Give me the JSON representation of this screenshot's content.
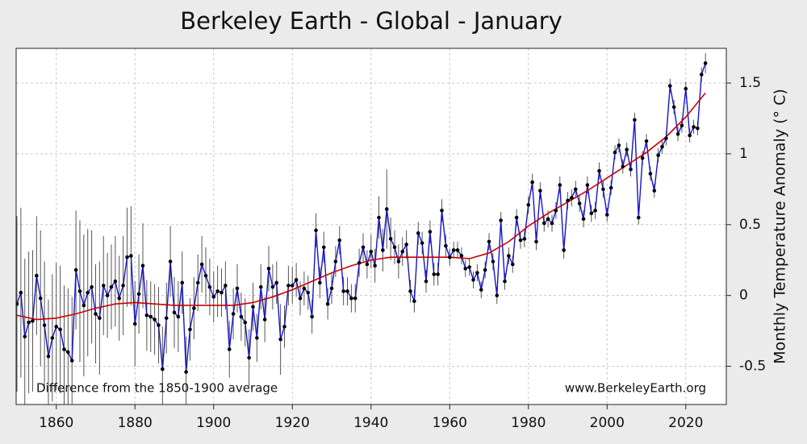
{
  "chart_data": {
    "type": "line",
    "title": "Berkeley Earth - Global - January",
    "y_label": "Monthly Temperature Anomaly (° C)",
    "annotations": [
      "Difference from the 1850-1900 average",
      "www.BerkeleyEarth.org"
    ],
    "grid": true,
    "xlim": [
      1849.8,
      2030.3
    ],
    "ylim": [
      -0.77,
      1.745
    ],
    "xticks": [
      1860,
      1880,
      1900,
      1920,
      1940,
      1960,
      1980,
      2000,
      2020
    ],
    "yticks": [
      -0.5,
      0,
      0.5,
      1,
      1.5
    ],
    "x": [
      1850,
      1851,
      1852,
      1853,
      1854,
      1855,
      1856,
      1857,
      1858,
      1859,
      1860,
      1861,
      1862,
      1863,
      1864,
      1865,
      1866,
      1867,
      1868,
      1869,
      1870,
      1871,
      1872,
      1873,
      1874,
      1875,
      1876,
      1877,
      1878,
      1879,
      1880,
      1881,
      1882,
      1883,
      1884,
      1885,
      1886,
      1887,
      1888,
      1889,
      1890,
      1891,
      1892,
      1893,
      1894,
      1895,
      1896,
      1897,
      1898,
      1899,
      1900,
      1901,
      1902,
      1903,
      1904,
      1905,
      1906,
      1907,
      1908,
      1909,
      1910,
      1911,
      1912,
      1913,
      1914,
      1915,
      1916,
      1917,
      1918,
      1919,
      1920,
      1921,
      1922,
      1923,
      1924,
      1925,
      1926,
      1927,
      1928,
      1929,
      1930,
      1931,
      1932,
      1933,
      1934,
      1935,
      1936,
      1937,
      1938,
      1939,
      1940,
      1941,
      1942,
      1943,
      1944,
      1945,
      1946,
      1947,
      1948,
      1949,
      1950,
      1951,
      1952,
      1953,
      1954,
      1955,
      1956,
      1957,
      1958,
      1959,
      1960,
      1961,
      1962,
      1963,
      1964,
      1965,
      1966,
      1967,
      1968,
      1969,
      1970,
      1971,
      1972,
      1973,
      1974,
      1975,
      1976,
      1977,
      1978,
      1979,
      1980,
      1981,
      1982,
      1983,
      1984,
      1985,
      1986,
      1987,
      1988,
      1989,
      1990,
      1991,
      1992,
      1993,
      1994,
      1995,
      1996,
      1997,
      1998,
      1999,
      2000,
      2001,
      2002,
      2003,
      2004,
      2005,
      2006,
      2007,
      2008,
      2009,
      2010,
      2011,
      2012,
      2013,
      2014,
      2015,
      2016,
      2017,
      2018,
      2019,
      2020,
      2021,
      2022,
      2023,
      2024,
      2025
    ],
    "series": [
      {
        "color": "#1414c8",
        "values": [
          -0.06,
          0.02,
          -0.29,
          -0.19,
          -0.18,
          0.14,
          -0.02,
          -0.21,
          -0.43,
          -0.3,
          -0.22,
          -0.24,
          -0.38,
          -0.4,
          -0.46,
          0.18,
          0.03,
          -0.07,
          0.02,
          0.06,
          -0.13,
          -0.16,
          0.07,
          0.0,
          0.06,
          0.1,
          -0.02,
          0.07,
          0.27,
          0.28,
          -0.2,
          0.01,
          0.21,
          -0.14,
          -0.15,
          -0.17,
          -0.21,
          -0.52,
          -0.16,
          0.24,
          -0.12,
          -0.15,
          0.09,
          -0.54,
          -0.24,
          -0.09,
          0.09,
          0.22,
          0.14,
          0.06,
          -0.01,
          0.03,
          0.02,
          0.07,
          -0.38,
          -0.13,
          0.05,
          -0.15,
          -0.19,
          -0.44,
          -0.08,
          -0.3,
          0.06,
          -0.17,
          0.19,
          0.06,
          0.09,
          -0.31,
          -0.22,
          0.07,
          0.07,
          0.11,
          -0.02,
          0.05,
          0.02,
          -0.15,
          0.46,
          0.09,
          0.34,
          -0.06,
          0.05,
          0.24,
          0.39,
          0.03,
          0.03,
          -0.02,
          -0.02,
          0.23,
          0.34,
          0.22,
          0.31,
          0.21,
          0.55,
          0.32,
          0.61,
          0.4,
          0.34,
          0.24,
          0.31,
          0.36,
          0.03,
          -0.04,
          0.44,
          0.37,
          0.1,
          0.45,
          0.15,
          0.15,
          0.6,
          0.35,
          0.27,
          0.32,
          0.32,
          0.28,
          0.19,
          0.2,
          0.11,
          0.16,
          0.04,
          0.18,
          0.38,
          0.24,
          0.0,
          0.53,
          0.1,
          0.28,
          0.22,
          0.55,
          0.39,
          0.4,
          0.64,
          0.8,
          0.38,
          0.74,
          0.51,
          0.54,
          0.51,
          0.6,
          0.78,
          0.32,
          0.67,
          0.69,
          0.75,
          0.65,
          0.54,
          0.78,
          0.58,
          0.6,
          0.88,
          0.75,
          0.57,
          0.76,
          1.01,
          1.06,
          0.91,
          1.03,
          0.89,
          1.24,
          0.55,
          0.97,
          1.09,
          0.86,
          0.74,
          0.99,
          1.05,
          1.11,
          1.48,
          1.33,
          1.14,
          1.2,
          1.46,
          1.13,
          1.19,
          1.18,
          1.56,
          1.64
        ],
        "errors": [
          0.62,
          0.6,
          0.55,
          0.5,
          0.5,
          0.42,
          0.48,
          0.45,
          0.4,
          0.45,
          0.45,
          0.45,
          0.45,
          0.45,
          0.45,
          0.42,
          0.5,
          0.5,
          0.45,
          0.4,
          0.35,
          0.4,
          0.35,
          0.3,
          0.3,
          0.32,
          0.3,
          0.35,
          0.35,
          0.35,
          0.3,
          0.28,
          0.3,
          0.25,
          0.25,
          0.25,
          0.27,
          0.3,
          0.25,
          0.25,
          0.25,
          0.25,
          0.22,
          0.25,
          0.22,
          0.22,
          0.2,
          0.2,
          0.2,
          0.2,
          0.18,
          0.18,
          0.17,
          0.17,
          0.2,
          0.18,
          0.17,
          0.17,
          0.17,
          0.2,
          0.17,
          0.17,
          0.16,
          0.16,
          0.16,
          0.16,
          0.15,
          0.25,
          0.15,
          0.14,
          0.13,
          0.12,
          0.12,
          0.12,
          0.12,
          0.12,
          0.12,
          0.11,
          0.11,
          0.11,
          0.11,
          0.11,
          0.1,
          0.1,
          0.1,
          0.1,
          0.1,
          0.1,
          0.1,
          0.1,
          0.12,
          0.12,
          0.15,
          0.15,
          0.28,
          0.15,
          0.12,
          0.12,
          0.1,
          0.1,
          0.08,
          0.08,
          0.08,
          0.08,
          0.08,
          0.08,
          0.08,
          0.08,
          0.08,
          0.08,
          0.06,
          0.06,
          0.06,
          0.06,
          0.06,
          0.06,
          0.06,
          0.06,
          0.06,
          0.06,
          0.06,
          0.06,
          0.06,
          0.06,
          0.06,
          0.06,
          0.06,
          0.06,
          0.06,
          0.06,
          0.06,
          0.06,
          0.06,
          0.06,
          0.06,
          0.06,
          0.06,
          0.06,
          0.06,
          0.06,
          0.06,
          0.06,
          0.06,
          0.06,
          0.06,
          0.06,
          0.06,
          0.06,
          0.06,
          0.06,
          0.05,
          0.05,
          0.05,
          0.05,
          0.05,
          0.05,
          0.05,
          0.05,
          0.05,
          0.05,
          0.05,
          0.05,
          0.05,
          0.05,
          0.05,
          0.05,
          0.05,
          0.05,
          0.05,
          0.05,
          0.05,
          0.05,
          0.05,
          0.05,
          0.05,
          0.07
        ]
      }
    ],
    "trend": {
      "color": "#cc0000",
      "x": [
        1850,
        1855,
        1860,
        1865,
        1870,
        1875,
        1880,
        1885,
        1890,
        1895,
        1900,
        1905,
        1910,
        1915,
        1920,
        1925,
        1930,
        1935,
        1940,
        1945,
        1950,
        1955,
        1960,
        1965,
        1970,
        1975,
        1980,
        1985,
        1990,
        1995,
        2000,
        2005,
        2010,
        2015,
        2020,
        2025
      ],
      "values": [
        -0.14,
        -0.17,
        -0.16,
        -0.13,
        -0.09,
        -0.06,
        -0.05,
        -0.06,
        -0.07,
        -0.07,
        -0.07,
        -0.07,
        -0.05,
        -0.01,
        0.04,
        0.1,
        0.16,
        0.21,
        0.25,
        0.27,
        0.27,
        0.27,
        0.27,
        0.26,
        0.3,
        0.38,
        0.49,
        0.58,
        0.66,
        0.74,
        0.83,
        0.92,
        1.01,
        1.12,
        1.26,
        1.43
      ]
    }
  }
}
